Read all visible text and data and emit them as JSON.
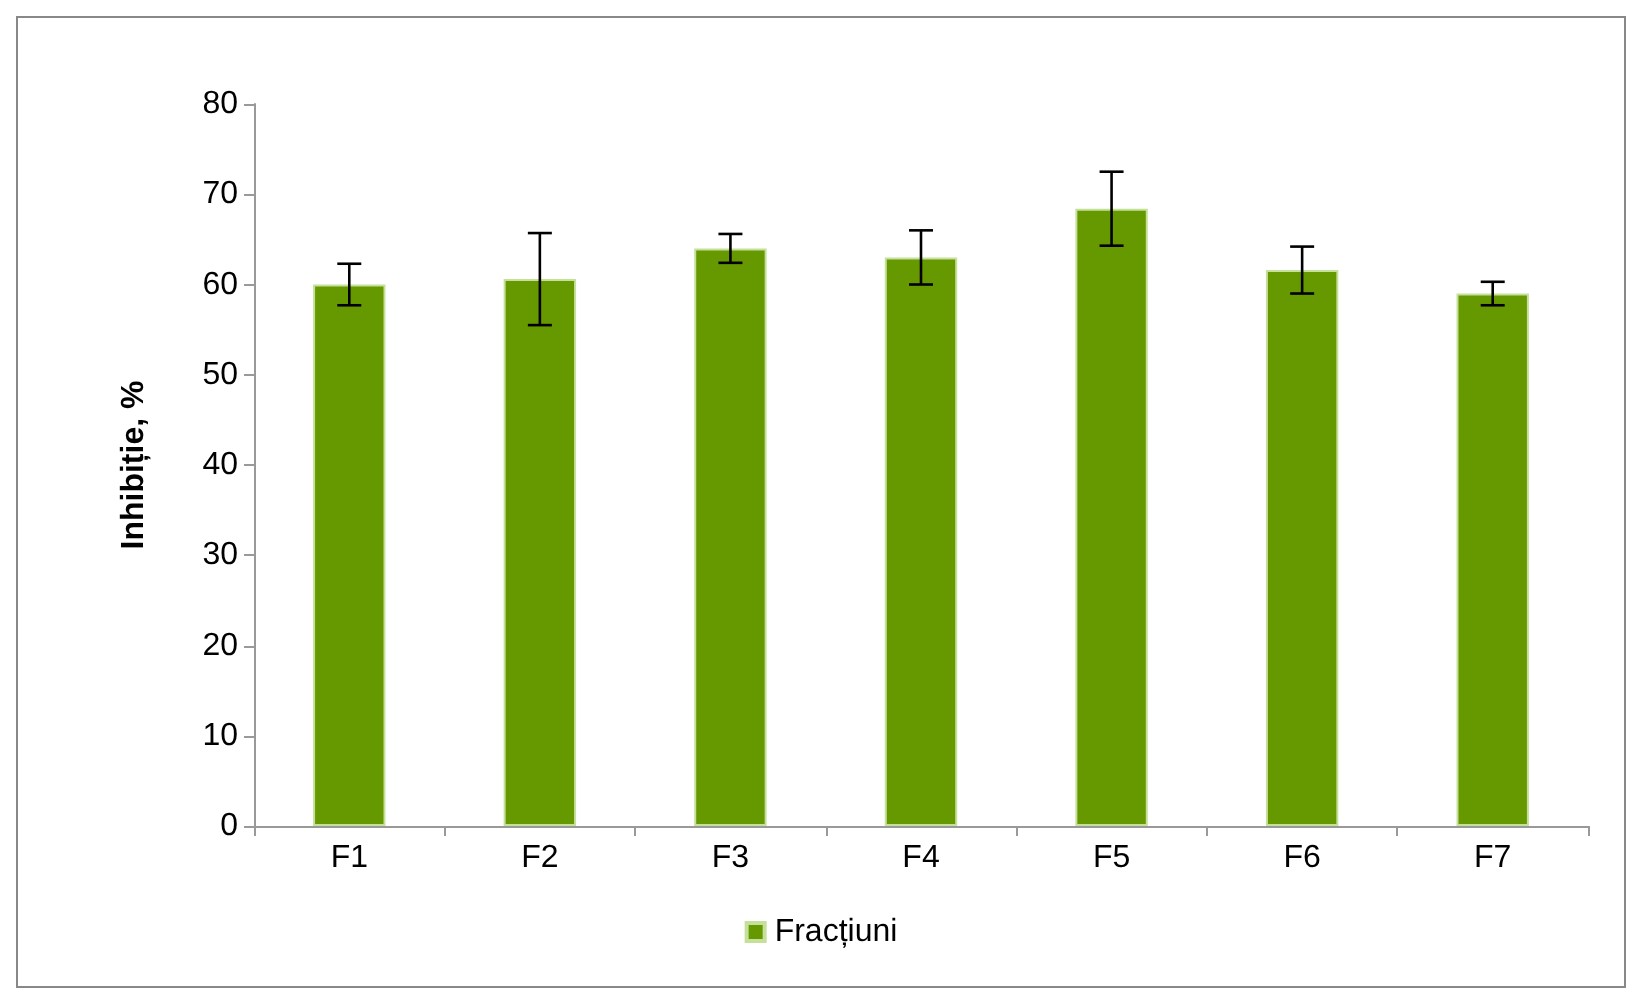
{
  "chart_data": {
    "type": "bar",
    "ylabel": "Inhibiție, %",
    "categories": [
      "F1",
      "F2",
      "F3",
      "F4",
      "F5",
      "F6",
      "F7"
    ],
    "series": [
      {
        "name": "Fracțiuni",
        "color": "#669900",
        "values": [
          60.0,
          60.6,
          64.0,
          63.0,
          68.4,
          61.6,
          59.0
        ],
        "errors": [
          2.3,
          5.1,
          1.6,
          3.0,
          4.1,
          2.6,
          1.3
        ]
      }
    ],
    "ylim": [
      0,
      80
    ],
    "yticks": [
      0,
      10,
      20,
      30,
      40,
      50,
      60,
      70,
      80
    ],
    "grid": false,
    "legend": "bottom"
  }
}
